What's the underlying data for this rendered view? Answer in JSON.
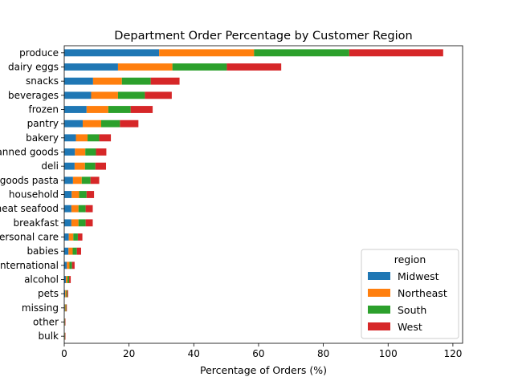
{
  "chart_data": {
    "type": "bar",
    "orientation": "horizontal",
    "stacked": true,
    "title": "Department Order Percentage by Customer Region",
    "xlabel": "Percentage of Orders (%)",
    "ylabel": "",
    "xlim": [
      0,
      123
    ],
    "xticks": [
      0,
      20,
      40,
      60,
      80,
      100,
      120
    ],
    "grid": false,
    "legend": {
      "title": "region",
      "position": "lower-right"
    },
    "categories": [
      "produce",
      "dairy eggs",
      "snacks",
      "beverages",
      "frozen",
      "pantry",
      "bakery",
      "canned goods",
      "deli",
      "dry goods pasta",
      "household",
      "meat seafood",
      "breakfast",
      "personal care",
      "babies",
      "international",
      "alcohol",
      "pets",
      "missing",
      "other",
      "bulk"
    ],
    "series": [
      {
        "name": "Midwest",
        "color": "#1f77b4",
        "values": [
          29.3,
          16.6,
          8.9,
          8.3,
          6.9,
          5.7,
          3.6,
          3.3,
          3.2,
          2.7,
          2.3,
          2.2,
          2.2,
          1.4,
          1.3,
          0.8,
          0.5,
          0.3,
          0.2,
          0.1,
          0.1
        ]
      },
      {
        "name": "Northeast",
        "color": "#ff7f0e",
        "values": [
          29.3,
          16.8,
          8.9,
          8.3,
          6.7,
          5.7,
          3.6,
          3.2,
          3.2,
          2.7,
          2.3,
          2.2,
          2.2,
          1.4,
          1.3,
          0.8,
          0.5,
          0.3,
          0.2,
          0.1,
          0.1
        ]
      },
      {
        "name": "South",
        "color": "#2ca02c",
        "values": [
          29.4,
          16.8,
          8.9,
          8.3,
          6.9,
          5.8,
          3.6,
          3.3,
          3.2,
          2.7,
          2.3,
          2.2,
          2.2,
          1.4,
          1.3,
          0.8,
          0.5,
          0.3,
          0.2,
          0.1,
          0.1
        ]
      },
      {
        "name": "West",
        "color": "#d62728",
        "values": [
          29.0,
          16.8,
          8.9,
          8.3,
          6.8,
          5.7,
          3.6,
          3.2,
          3.3,
          2.7,
          2.3,
          2.2,
          2.2,
          1.4,
          1.3,
          0.8,
          0.5,
          0.3,
          0.2,
          0.1,
          0.1
        ]
      }
    ]
  }
}
